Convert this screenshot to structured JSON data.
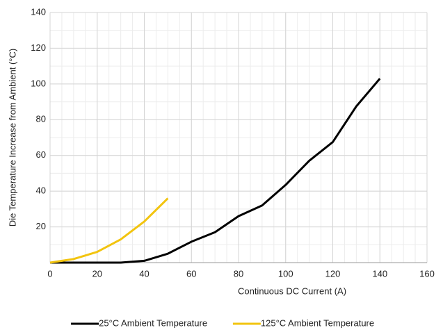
{
  "chart_data": {
    "type": "line",
    "x_label": "Continuous DC Current (A)",
    "y_label": "Die Temperature Increase from Ambient (°C)",
    "x": [
      0,
      10,
      20,
      30,
      40,
      50,
      60,
      70,
      80,
      90,
      100,
      110,
      120,
      130,
      140
    ],
    "series": [
      {
        "name": "25°C Ambient Temperature",
        "color": "#000000",
        "values": [
          0,
          0,
          0,
          0,
          1,
          5,
          11.7,
          17,
          26,
          32,
          43.5,
          57,
          67.5,
          87.5,
          103
        ]
      },
      {
        "name": "125°C Ambient Temperature",
        "color": "#f2c40f",
        "values": [
          0,
          2,
          6,
          13,
          23,
          36,
          null,
          null,
          null,
          null,
          null,
          null,
          null,
          null,
          null
        ]
      }
    ],
    "xlim": [
      0,
      160
    ],
    "xticks": [
      0,
      20,
      40,
      60,
      80,
      100,
      120,
      140,
      160
    ],
    "ylim": [
      0,
      140
    ],
    "yticks": [
      20,
      40,
      60,
      80,
      100,
      120,
      140
    ],
    "grid": true,
    "minor_grid": {
      "x": 5,
      "y": 10
    },
    "legend": "bottom"
  }
}
